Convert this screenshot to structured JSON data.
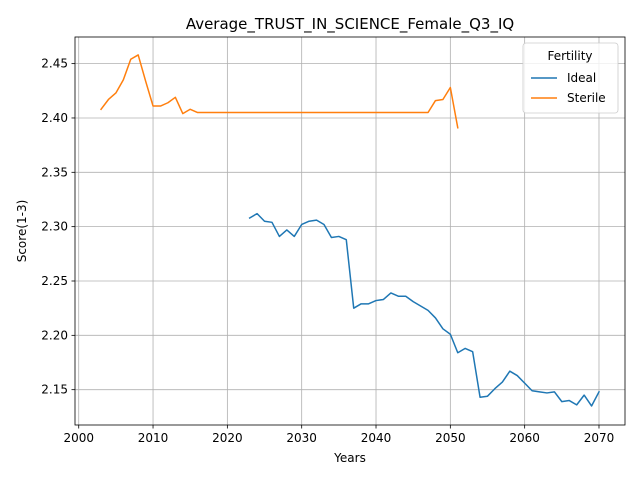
{
  "chart_data": {
    "type": "line",
    "title": "Average_TRUST_IN_SCIENCE_Female_Q3_IQ",
    "xlabel": "Years",
    "ylabel": "Score(1-3)",
    "xlim": [
      1999.5,
      2073.5
    ],
    "ylim": [
      2.1175,
      2.4745
    ],
    "xticks": [
      2000,
      2010,
      2020,
      2030,
      2040,
      2050,
      2060,
      2070
    ],
    "yticks": [
      2.15,
      2.2,
      2.25,
      2.3,
      2.35,
      2.4,
      2.45
    ],
    "grid": true,
    "legend": {
      "title": "Fertility",
      "placement": "top-right"
    },
    "series": [
      {
        "name": "Ideal",
        "color": "#1f77b4",
        "x": [
          2023,
          2024,
          2025,
          2026,
          2027,
          2028,
          2029,
          2030,
          2031,
          2032,
          2033,
          2034,
          2035,
          2036,
          2037,
          2038,
          2039,
          2040,
          2041,
          2042,
          2043,
          2044,
          2045,
          2046,
          2047,
          2048,
          2049,
          2050,
          2051,
          2052,
          2053,
          2054,
          2055,
          2056,
          2057,
          2058,
          2059,
          2060,
          2061,
          2062,
          2063,
          2064,
          2065,
          2066,
          2067,
          2068,
          2069,
          2070
        ],
        "y": [
          2.308,
          2.312,
          2.305,
          2.304,
          2.291,
          2.297,
          2.291,
          2.302,
          2.305,
          2.306,
          2.302,
          2.29,
          2.291,
          2.288,
          2.225,
          2.229,
          2.229,
          2.232,
          2.233,
          2.239,
          2.236,
          2.236,
          2.231,
          2.227,
          2.223,
          2.216,
          2.206,
          2.201,
          2.184,
          2.188,
          2.185,
          2.143,
          2.144,
          2.151,
          2.157,
          2.167,
          2.163,
          2.156,
          2.149,
          2.148,
          2.147,
          2.148,
          2.139,
          2.14,
          2.136,
          2.145,
          2.135,
          2.148
        ]
      },
      {
        "name": "Sterile",
        "color": "#ff7f0e",
        "x": [
          2003,
          2004,
          2005,
          2006,
          2007,
          2008,
          2009,
          2010,
          2011,
          2012,
          2013,
          2014,
          2015,
          2016,
          2017,
          2018,
          2019,
          2020,
          2021,
          2022,
          2023,
          2024,
          2025,
          2026,
          2027,
          2028,
          2029,
          2030,
          2031,
          2032,
          2033,
          2034,
          2035,
          2036,
          2037,
          2038,
          2039,
          2040,
          2041,
          2042,
          2043,
          2044,
          2045,
          2046,
          2047,
          2048,
          2049,
          2050,
          2051
        ],
        "y": [
          2.408,
          2.417,
          2.423,
          2.435,
          2.454,
          2.458,
          2.434,
          2.411,
          2.411,
          2.414,
          2.419,
          2.404,
          2.408,
          2.405,
          2.405,
          2.405,
          2.405,
          2.405,
          2.405,
          2.405,
          2.405,
          2.405,
          2.405,
          2.405,
          2.405,
          2.405,
          2.405,
          2.405,
          2.405,
          2.405,
          2.405,
          2.405,
          2.405,
          2.405,
          2.405,
          2.405,
          2.405,
          2.405,
          2.405,
          2.405,
          2.405,
          2.405,
          2.405,
          2.405,
          2.405,
          2.416,
          2.417,
          2.428,
          2.391
        ]
      }
    ]
  }
}
